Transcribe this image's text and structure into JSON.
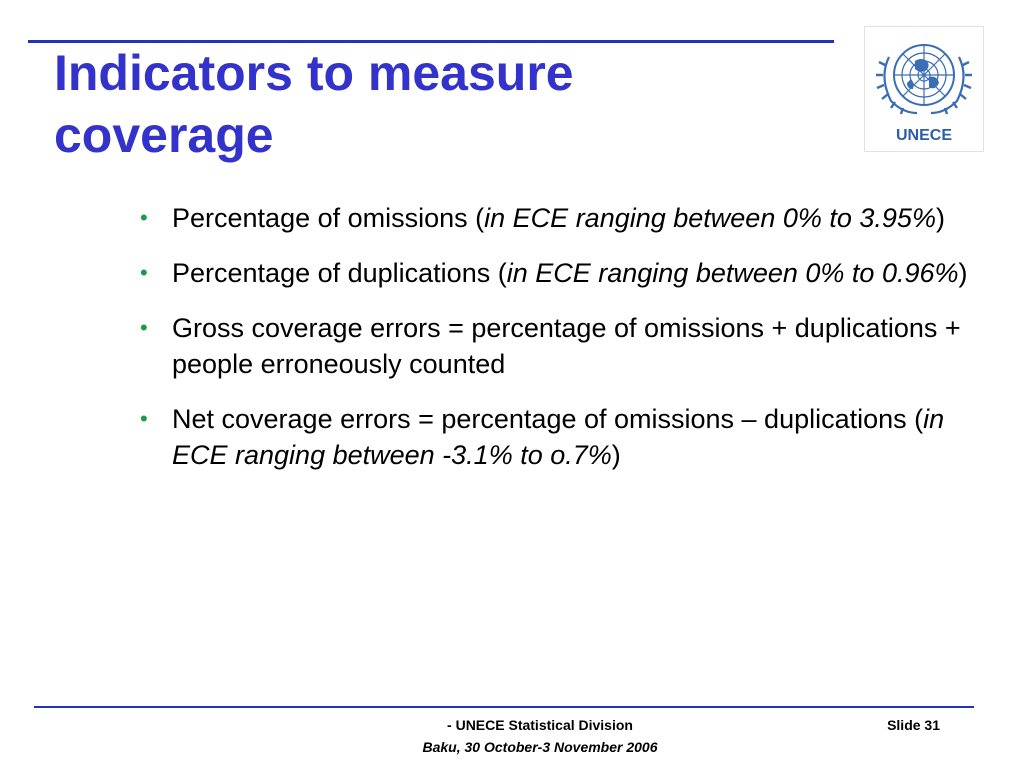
{
  "title_lines": [
    "Indicators to measure",
    "coverage"
  ],
  "logo": {
    "label": "UNECE",
    "icon": "un-emblem-icon",
    "color": "#2b5fa8"
  },
  "bullets": [
    {
      "text": "Percentage of omissions (",
      "italic": "in ECE ranging between 0% to 3.95%",
      "tail": ")"
    },
    {
      "text": "Percentage of duplications (",
      "italic": "in ECE ranging between 0% to 0.96%",
      "tail": ")"
    },
    {
      "text": "Gross coverage errors = percentage of omissions + duplications + people erroneously counted",
      "italic": "",
      "tail": ""
    },
    {
      "text": "Net coverage errors = percentage of omissions – duplications (",
      "italic": "in ECE ranging between -3.1% to o.7%",
      "tail": ")"
    }
  ],
  "bullet_symbol": "•",
  "footer": {
    "org": "- UNECE Statistical Division",
    "event": "Baku, 30 October-3 November 2006",
    "slide_label": "Slide 31"
  },
  "colors": {
    "title": "#3333cc",
    "rule": "#2233bb",
    "bullet": "#1a9a4a"
  }
}
